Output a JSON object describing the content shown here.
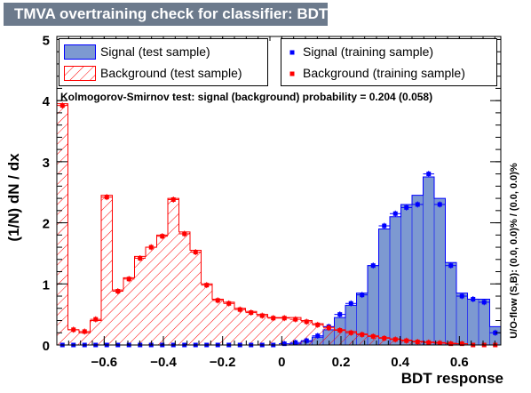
{
  "title": "TMVA overtraining check for classifier: BDT",
  "ks_text": "Kolmogorov-Smirnov test: signal (background) probability = 0.204 (0.058)",
  "side_note": "U/O-flow (S,B): (0.0, 0.0)% / (0.0, 0.0)%",
  "colors": {
    "signal_fill": "#7d99d1",
    "signal_line": "#0000ff",
    "background_line": "#ff0000",
    "title_bg": "#6c7a8c"
  },
  "chart_data": {
    "type": "histogram",
    "xlabel": "BDT response",
    "ylabel": "(1/N) dN / dx",
    "xlim": [
      -0.76,
      0.74
    ],
    "ylim": [
      0,
      5.05
    ],
    "x_ticks": [
      -0.6,
      -0.4,
      -0.2,
      0,
      0.2,
      0.4,
      0.6
    ],
    "x_tick_labels": [
      "−0.6",
      "−0.4",
      "−0.2",
      "0",
      "0.2",
      "0.4",
      "0.6"
    ],
    "y_ticks": [
      0,
      1,
      2,
      3,
      4,
      5
    ],
    "y_tick_labels": [
      "0",
      "1",
      "2",
      "3",
      "4",
      "5"
    ],
    "bins": 40,
    "series": [
      {
        "name": "Signal (test sample)",
        "kind": "filled",
        "values": [
          0.0,
          0.0,
          0.0,
          0.0,
          0.0,
          0.0,
          0.0,
          0.0,
          0.0,
          0.0,
          0.0,
          0.0,
          0.0,
          0.0,
          0.0,
          0.0,
          0.0,
          0.0,
          0.0,
          0.0,
          0.0,
          0.02,
          0.06,
          0.13,
          0.25,
          0.45,
          0.65,
          0.85,
          1.3,
          1.9,
          2.1,
          2.3,
          2.45,
          2.75,
          2.4,
          1.35,
          0.85,
          0.75,
          0.75,
          0.3
        ]
      },
      {
        "name": "Background (test sample)",
        "kind": "hatched",
        "values": [
          3.95,
          0.25,
          0.2,
          0.4,
          2.45,
          0.9,
          1.1,
          1.45,
          1.6,
          1.8,
          2.4,
          1.85,
          1.55,
          1.0,
          0.75,
          0.7,
          0.6,
          0.55,
          0.5,
          0.45,
          0.45,
          0.45,
          0.4,
          0.35,
          0.3,
          0.25,
          0.22,
          0.18,
          0.15,
          0.12,
          0.1,
          0.08,
          0.06,
          0.05,
          0.04,
          0.03,
          0.02,
          0.0,
          0.0,
          0.0
        ]
      },
      {
        "name": "Signal (training sample)",
        "kind": "points",
        "values": [
          0.0,
          0.0,
          0.0,
          0.0,
          0.0,
          0.0,
          0.0,
          0.0,
          0.0,
          0.0,
          0.0,
          0.0,
          0.0,
          0.0,
          0.0,
          0.0,
          0.0,
          0.0,
          0.0,
          0.0,
          0.02,
          0.04,
          0.07,
          0.15,
          0.3,
          0.5,
          0.68,
          0.82,
          1.3,
          1.95,
          2.15,
          2.25,
          2.3,
          2.8,
          2.3,
          1.3,
          0.8,
          0.75,
          0.7,
          0.2
        ]
      },
      {
        "name": "Background (training sample)",
        "kind": "points",
        "values": [
          3.92,
          0.25,
          0.22,
          0.42,
          2.42,
          0.88,
          1.08,
          1.42,
          1.6,
          1.78,
          2.38,
          1.82,
          1.52,
          0.98,
          0.73,
          0.68,
          0.58,
          0.53,
          0.48,
          0.44,
          0.44,
          0.42,
          0.38,
          0.33,
          0.28,
          0.24,
          0.2,
          0.17,
          0.14,
          0.11,
          0.09,
          0.07,
          0.05,
          0.04,
          0.03,
          0.02,
          0.02,
          0.0,
          0.0,
          0.0
        ]
      }
    ]
  }
}
